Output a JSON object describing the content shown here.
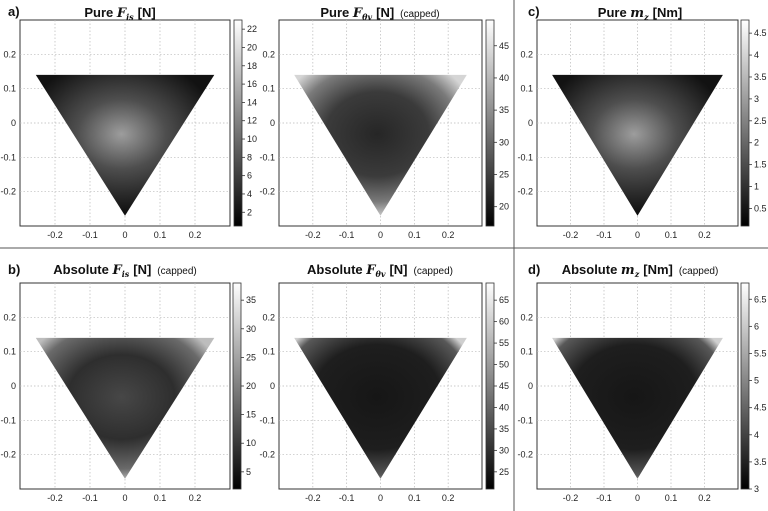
{
  "chart_data": [
    {
      "type": "heatmap",
      "panel_label": "a)",
      "title": {
        "prefix": "Pure",
        "symbol": "F",
        "subscript": "is",
        "unit": "[N]",
        "note": ""
      },
      "xlim": [
        -0.3,
        0.3
      ],
      "ylim": [
        -0.3,
        0.3
      ],
      "x_ticks": [
        "-0.2",
        "-0.1",
        "0",
        "0.1",
        "0.2"
      ],
      "y_ticks": [
        "0.2",
        "0.1",
        "0",
        "-0.1",
        "-0.2"
      ],
      "colorbar": {
        "min": 0.5,
        "max": 23,
        "ticks": [
          "2",
          "4",
          "6",
          "8",
          "10",
          "12",
          "14",
          "16",
          "18",
          "20",
          "22"
        ]
      },
      "pattern": "center-bright",
      "grid": true
    },
    {
      "type": "heatmap",
      "panel_label": "",
      "title": {
        "prefix": "Pure",
        "symbol": "F",
        "subscript": "θv",
        "unit": "[N]",
        "note": "(capped)"
      },
      "xlim": [
        -0.3,
        0.3
      ],
      "ylim": [
        -0.3,
        0.3
      ],
      "x_ticks": [
        "-0.2",
        "-0.1",
        "0",
        "0.1",
        "0.2"
      ],
      "y_ticks": [
        "0.2",
        "0.1",
        "0",
        "-0.1",
        "-0.2"
      ],
      "colorbar": {
        "min": 17,
        "max": 49,
        "ticks": [
          "20",
          "25",
          "30",
          "35",
          "40",
          "45"
        ]
      },
      "pattern": "edge-bright",
      "grid": true
    },
    {
      "type": "heatmap",
      "panel_label": "c)",
      "title": {
        "prefix": "Pure",
        "symbol": "m",
        "subscript": "z",
        "unit": "[Nm]",
        "note": ""
      },
      "xlim": [
        -0.3,
        0.3
      ],
      "ylim": [
        -0.3,
        0.3
      ],
      "x_ticks": [
        "-0.2",
        "-0.1",
        "0",
        "0.1",
        "0.2"
      ],
      "y_ticks": [
        "0.2",
        "0.1",
        "0",
        "-0.1",
        "-0.2"
      ],
      "colorbar": {
        "min": 0.1,
        "max": 4.8,
        "ticks": [
          "0.5",
          "1",
          "1.5",
          "2",
          "2.5",
          "3",
          "3.5",
          "4",
          "4.5"
        ]
      },
      "pattern": "center-bright",
      "grid": true
    },
    {
      "type": "heatmap",
      "panel_label": "b)",
      "title": {
        "prefix": "Absolute",
        "symbol": "F",
        "subscript": "is",
        "unit": "[N]",
        "note": "(capped)"
      },
      "xlim": [
        -0.3,
        0.3
      ],
      "ylim": [
        -0.3,
        0.3
      ],
      "x_ticks": [
        "-0.2",
        "-0.1",
        "0",
        "0.1",
        "0.2"
      ],
      "y_ticks": [
        "0.2",
        "0.1",
        "0",
        "-0.1",
        "-0.2"
      ],
      "colorbar": {
        "min": 2,
        "max": 38,
        "ticks": [
          "5",
          "10",
          "15",
          "20",
          "25",
          "30",
          "35"
        ]
      },
      "pattern": "mixed",
      "grid": true
    },
    {
      "type": "heatmap",
      "panel_label": "",
      "title": {
        "prefix": "Absolute",
        "symbol": "F",
        "subscript": "θv",
        "unit": "[N]",
        "note": "(capped)"
      },
      "xlim": [
        -0.3,
        0.3
      ],
      "ylim": [
        -0.3,
        0.3
      ],
      "x_ticks": [
        "-0.2",
        "-0.1",
        "0",
        "0.1",
        "0.2"
      ],
      "y_ticks": [
        "0.2",
        "0.1",
        "0",
        "-0.1",
        "-0.2"
      ],
      "colorbar": {
        "min": 21,
        "max": 69,
        "ticks": [
          "25",
          "30",
          "35",
          "40",
          "45",
          "50",
          "55",
          "60",
          "65"
        ]
      },
      "pattern": "dark-edge-bright",
      "grid": true
    },
    {
      "type": "heatmap",
      "panel_label": "d)",
      "title": {
        "prefix": "Absolute",
        "symbol": "m",
        "subscript": "z",
        "unit": "[Nm]",
        "note": "(capped)"
      },
      "xlim": [
        -0.3,
        0.3
      ],
      "ylim": [
        -0.3,
        0.3
      ],
      "x_ticks": [
        "-0.2",
        "-0.1",
        "0",
        "0.1",
        "0.2"
      ],
      "y_ticks": [
        "0.2",
        "0.1",
        "0",
        "-0.1",
        "-0.2"
      ],
      "colorbar": {
        "min": 3,
        "max": 6.8,
        "ticks": [
          "3",
          "3.5",
          "4",
          "4.5",
          "5",
          "5.5",
          "6",
          "6.5"
        ]
      },
      "pattern": "dark-edge-bright",
      "grid": true
    }
  ],
  "colors": {
    "background": "#ffffff",
    "grid": "#b9b9b9",
    "frame": "#333333",
    "divider": "#555555"
  }
}
